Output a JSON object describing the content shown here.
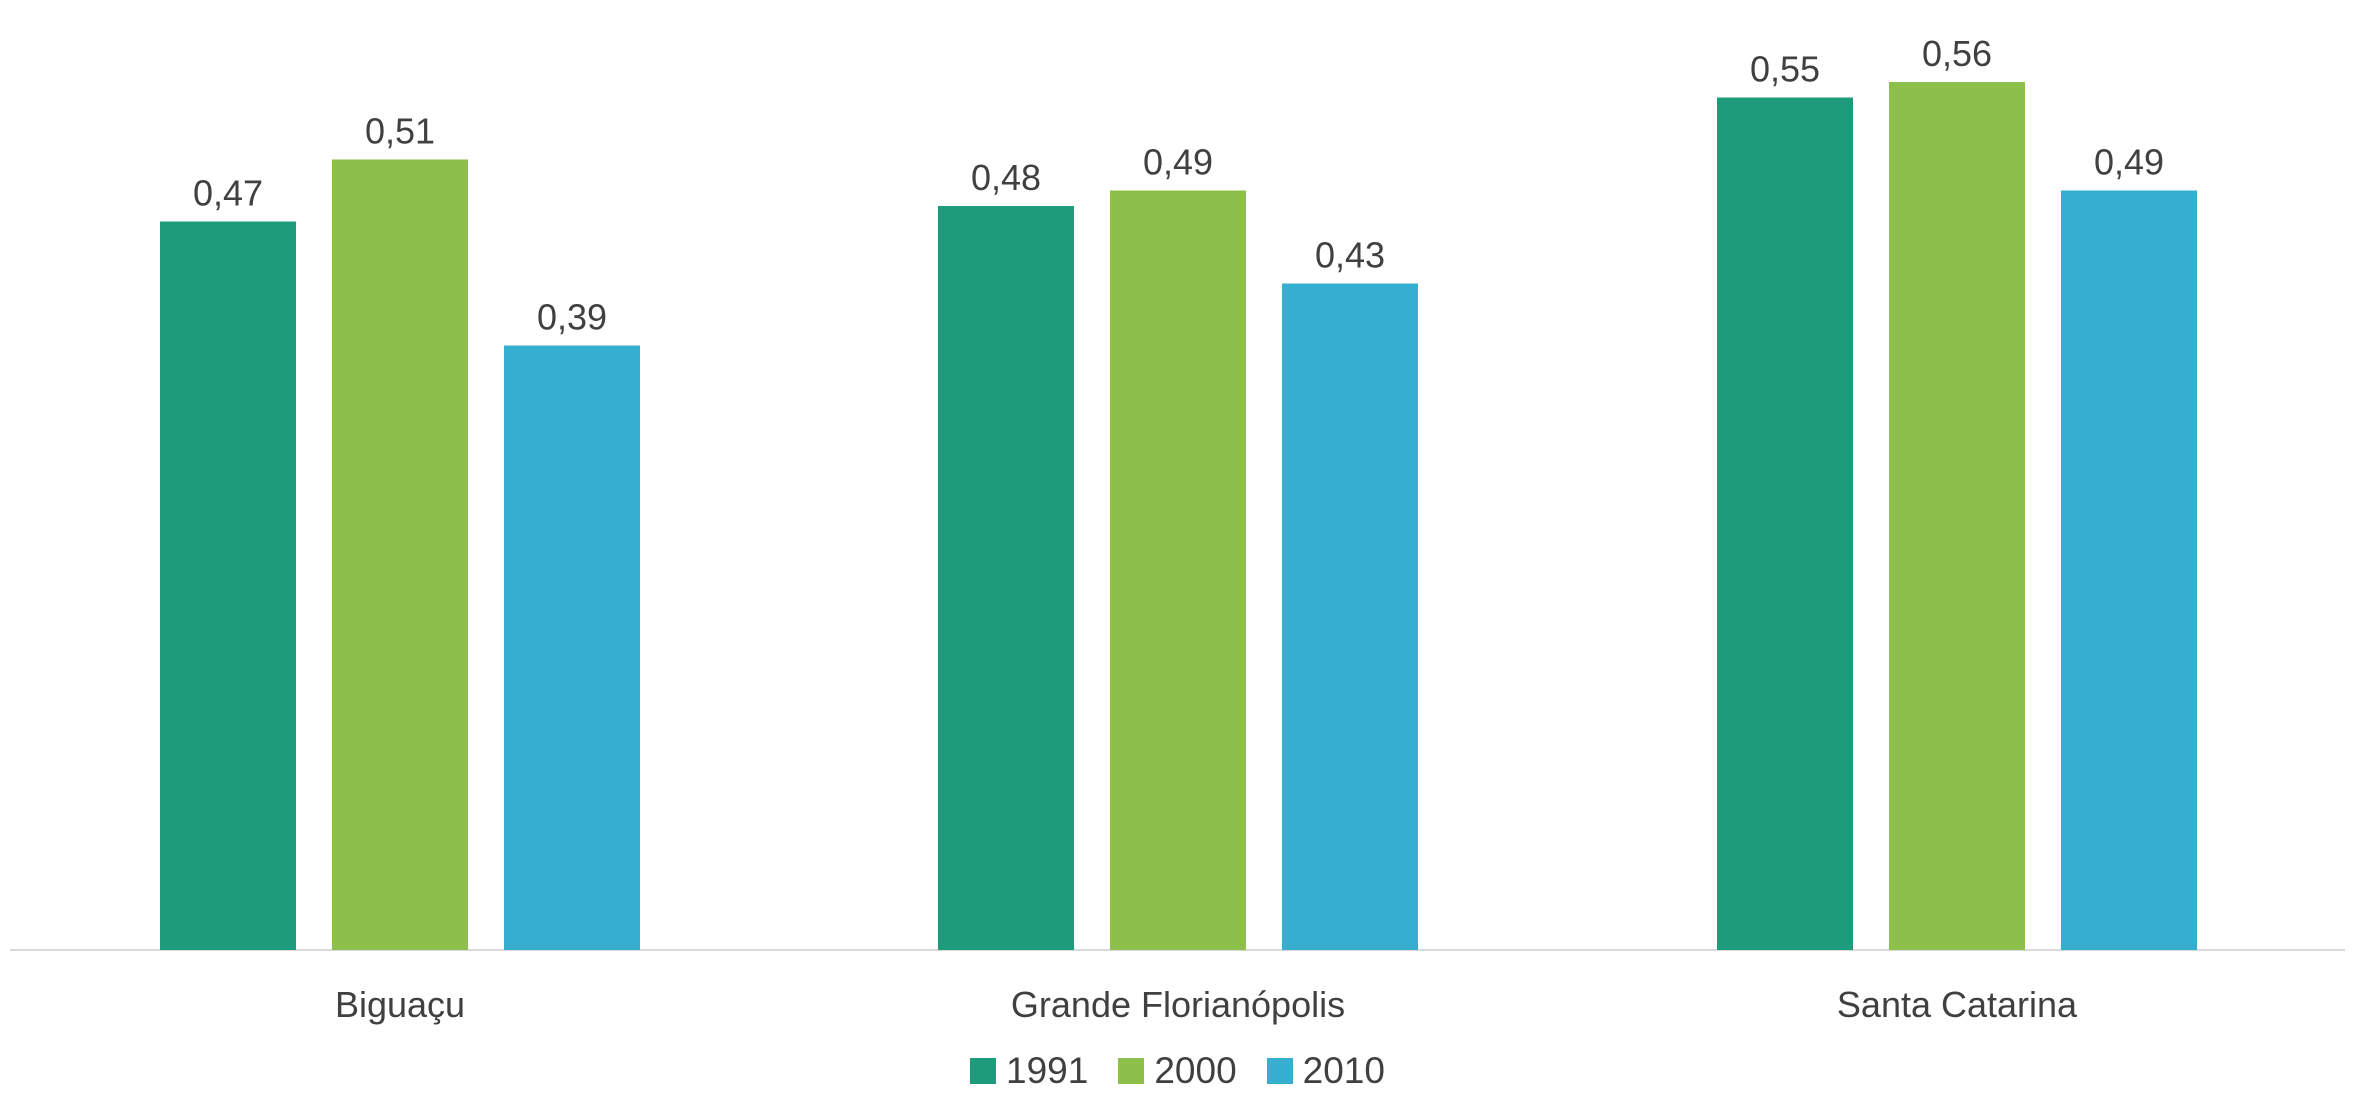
{
  "chart_data": {
    "type": "bar",
    "categories": [
      "Biguaçu",
      "Grande Florianópolis",
      "Santa Catarina"
    ],
    "series": [
      {
        "name": "1991",
        "color": "#1e9b7b",
        "values": [
          0.47,
          0.48,
          0.55
        ],
        "labels": [
          "0,47",
          "0,48",
          "0,55"
        ]
      },
      {
        "name": "2000",
        "color": "#8cc04a",
        "values": [
          0.51,
          0.49,
          0.56
        ],
        "labels": [
          "0,51",
          "0,49",
          "0,56"
        ]
      },
      {
        "name": "2010",
        "color": "#36aecf",
        "values": [
          0.39,
          0.43,
          0.49
        ],
        "labels": [
          "0,39",
          "0,43",
          "0,49"
        ]
      }
    ],
    "ylim": [
      0,
      0.6
    ],
    "grid": false,
    "legend_position": "bottom",
    "title": "",
    "xlabel": "",
    "ylabel": ""
  }
}
